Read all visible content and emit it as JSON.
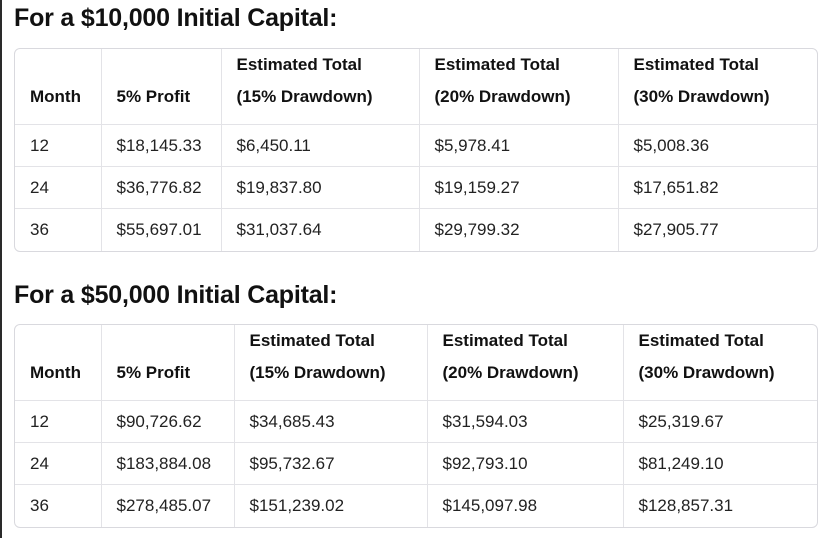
{
  "sections": [
    {
      "title": "For a $10,000 Initial Capital:",
      "headers": [
        {
          "line1": "",
          "line2": "Month"
        },
        {
          "line1": "",
          "line2": "5% Profit"
        },
        {
          "line1": "Estimated Total",
          "line2": "(15% Drawdown)"
        },
        {
          "line1": "Estimated Total",
          "line2": "(20% Drawdown)"
        },
        {
          "line1": "Estimated Total",
          "line2": "(30% Drawdown)"
        }
      ],
      "rows": [
        [
          "12",
          "$18,145.33",
          "$6,450.11",
          "$5,978.41",
          "$5,008.36"
        ],
        [
          "24",
          "$36,776.82",
          "$19,837.80",
          "$19,159.27",
          "$17,651.82"
        ],
        [
          "36",
          "$55,697.01",
          "$31,037.64",
          "$29,799.32",
          "$27,905.77"
        ]
      ]
    },
    {
      "title": "For a $50,000 Initial Capital:",
      "headers": [
        {
          "line1": "",
          "line2": "Month"
        },
        {
          "line1": "",
          "line2": "5% Profit"
        },
        {
          "line1": "Estimated Total",
          "line2": "(15% Drawdown)"
        },
        {
          "line1": "Estimated Total",
          "line2": "(20% Drawdown)"
        },
        {
          "line1": "Estimated Total",
          "line2": "(30% Drawdown)"
        }
      ],
      "rows": [
        [
          "12",
          "$90,726.62",
          "$34,685.43",
          "$31,594.03",
          "$25,319.67"
        ],
        [
          "24",
          "$183,884.08",
          "$95,732.67",
          "$92,793.10",
          "$81,249.10"
        ],
        [
          "36",
          "$278,485.07",
          "$151,239.02",
          "$145,097.98",
          "$128,857.31"
        ]
      ]
    }
  ]
}
